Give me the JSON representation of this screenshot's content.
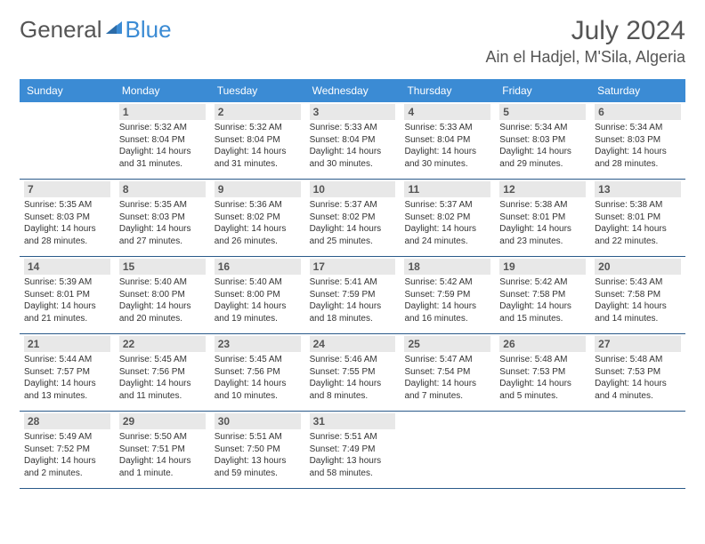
{
  "brand": {
    "general": "General",
    "blue": "Blue",
    "accent_color": "#3b8bd4",
    "text_color": "#555555"
  },
  "title": "July 2024",
  "location": "Ain el Hadjel, M'Sila, Algeria",
  "columns": [
    "Sunday",
    "Monday",
    "Tuesday",
    "Wednesday",
    "Thursday",
    "Friday",
    "Saturday"
  ],
  "header_bg": "#3b8bd4",
  "header_fg": "#ffffff",
  "daynum_bg": "#e8e8e8",
  "border_color": "#2a5a8a",
  "weeks": [
    [
      {
        "d": "",
        "lines": [
          "",
          "",
          "",
          ""
        ]
      },
      {
        "d": "1",
        "lines": [
          "Sunrise: 5:32 AM",
          "Sunset: 8:04 PM",
          "Daylight: 14 hours",
          "and 31 minutes."
        ]
      },
      {
        "d": "2",
        "lines": [
          "Sunrise: 5:32 AM",
          "Sunset: 8:04 PM",
          "Daylight: 14 hours",
          "and 31 minutes."
        ]
      },
      {
        "d": "3",
        "lines": [
          "Sunrise: 5:33 AM",
          "Sunset: 8:04 PM",
          "Daylight: 14 hours",
          "and 30 minutes."
        ]
      },
      {
        "d": "4",
        "lines": [
          "Sunrise: 5:33 AM",
          "Sunset: 8:04 PM",
          "Daylight: 14 hours",
          "and 30 minutes."
        ]
      },
      {
        "d": "5",
        "lines": [
          "Sunrise: 5:34 AM",
          "Sunset: 8:03 PM",
          "Daylight: 14 hours",
          "and 29 minutes."
        ]
      },
      {
        "d": "6",
        "lines": [
          "Sunrise: 5:34 AM",
          "Sunset: 8:03 PM",
          "Daylight: 14 hours",
          "and 28 minutes."
        ]
      }
    ],
    [
      {
        "d": "7",
        "lines": [
          "Sunrise: 5:35 AM",
          "Sunset: 8:03 PM",
          "Daylight: 14 hours",
          "and 28 minutes."
        ]
      },
      {
        "d": "8",
        "lines": [
          "Sunrise: 5:35 AM",
          "Sunset: 8:03 PM",
          "Daylight: 14 hours",
          "and 27 minutes."
        ]
      },
      {
        "d": "9",
        "lines": [
          "Sunrise: 5:36 AM",
          "Sunset: 8:02 PM",
          "Daylight: 14 hours",
          "and 26 minutes."
        ]
      },
      {
        "d": "10",
        "lines": [
          "Sunrise: 5:37 AM",
          "Sunset: 8:02 PM",
          "Daylight: 14 hours",
          "and 25 minutes."
        ]
      },
      {
        "d": "11",
        "lines": [
          "Sunrise: 5:37 AM",
          "Sunset: 8:02 PM",
          "Daylight: 14 hours",
          "and 24 minutes."
        ]
      },
      {
        "d": "12",
        "lines": [
          "Sunrise: 5:38 AM",
          "Sunset: 8:01 PM",
          "Daylight: 14 hours",
          "and 23 minutes."
        ]
      },
      {
        "d": "13",
        "lines": [
          "Sunrise: 5:38 AM",
          "Sunset: 8:01 PM",
          "Daylight: 14 hours",
          "and 22 minutes."
        ]
      }
    ],
    [
      {
        "d": "14",
        "lines": [
          "Sunrise: 5:39 AM",
          "Sunset: 8:01 PM",
          "Daylight: 14 hours",
          "and 21 minutes."
        ]
      },
      {
        "d": "15",
        "lines": [
          "Sunrise: 5:40 AM",
          "Sunset: 8:00 PM",
          "Daylight: 14 hours",
          "and 20 minutes."
        ]
      },
      {
        "d": "16",
        "lines": [
          "Sunrise: 5:40 AM",
          "Sunset: 8:00 PM",
          "Daylight: 14 hours",
          "and 19 minutes."
        ]
      },
      {
        "d": "17",
        "lines": [
          "Sunrise: 5:41 AM",
          "Sunset: 7:59 PM",
          "Daylight: 14 hours",
          "and 18 minutes."
        ]
      },
      {
        "d": "18",
        "lines": [
          "Sunrise: 5:42 AM",
          "Sunset: 7:59 PM",
          "Daylight: 14 hours",
          "and 16 minutes."
        ]
      },
      {
        "d": "19",
        "lines": [
          "Sunrise: 5:42 AM",
          "Sunset: 7:58 PM",
          "Daylight: 14 hours",
          "and 15 minutes."
        ]
      },
      {
        "d": "20",
        "lines": [
          "Sunrise: 5:43 AM",
          "Sunset: 7:58 PM",
          "Daylight: 14 hours",
          "and 14 minutes."
        ]
      }
    ],
    [
      {
        "d": "21",
        "lines": [
          "Sunrise: 5:44 AM",
          "Sunset: 7:57 PM",
          "Daylight: 14 hours",
          "and 13 minutes."
        ]
      },
      {
        "d": "22",
        "lines": [
          "Sunrise: 5:45 AM",
          "Sunset: 7:56 PM",
          "Daylight: 14 hours",
          "and 11 minutes."
        ]
      },
      {
        "d": "23",
        "lines": [
          "Sunrise: 5:45 AM",
          "Sunset: 7:56 PM",
          "Daylight: 14 hours",
          "and 10 minutes."
        ]
      },
      {
        "d": "24",
        "lines": [
          "Sunrise: 5:46 AM",
          "Sunset: 7:55 PM",
          "Daylight: 14 hours",
          "and 8 minutes."
        ]
      },
      {
        "d": "25",
        "lines": [
          "Sunrise: 5:47 AM",
          "Sunset: 7:54 PM",
          "Daylight: 14 hours",
          "and 7 minutes."
        ]
      },
      {
        "d": "26",
        "lines": [
          "Sunrise: 5:48 AM",
          "Sunset: 7:53 PM",
          "Daylight: 14 hours",
          "and 5 minutes."
        ]
      },
      {
        "d": "27",
        "lines": [
          "Sunrise: 5:48 AM",
          "Sunset: 7:53 PM",
          "Daylight: 14 hours",
          "and 4 minutes."
        ]
      }
    ],
    [
      {
        "d": "28",
        "lines": [
          "Sunrise: 5:49 AM",
          "Sunset: 7:52 PM",
          "Daylight: 14 hours",
          "and 2 minutes."
        ]
      },
      {
        "d": "29",
        "lines": [
          "Sunrise: 5:50 AM",
          "Sunset: 7:51 PM",
          "Daylight: 14 hours",
          "and 1 minute."
        ]
      },
      {
        "d": "30",
        "lines": [
          "Sunrise: 5:51 AM",
          "Sunset: 7:50 PM",
          "Daylight: 13 hours",
          "and 59 minutes."
        ]
      },
      {
        "d": "31",
        "lines": [
          "Sunrise: 5:51 AM",
          "Sunset: 7:49 PM",
          "Daylight: 13 hours",
          "and 58 minutes."
        ]
      },
      {
        "d": "",
        "lines": [
          "",
          "",
          "",
          ""
        ]
      },
      {
        "d": "",
        "lines": [
          "",
          "",
          "",
          ""
        ]
      },
      {
        "d": "",
        "lines": [
          "",
          "",
          "",
          ""
        ]
      }
    ]
  ]
}
